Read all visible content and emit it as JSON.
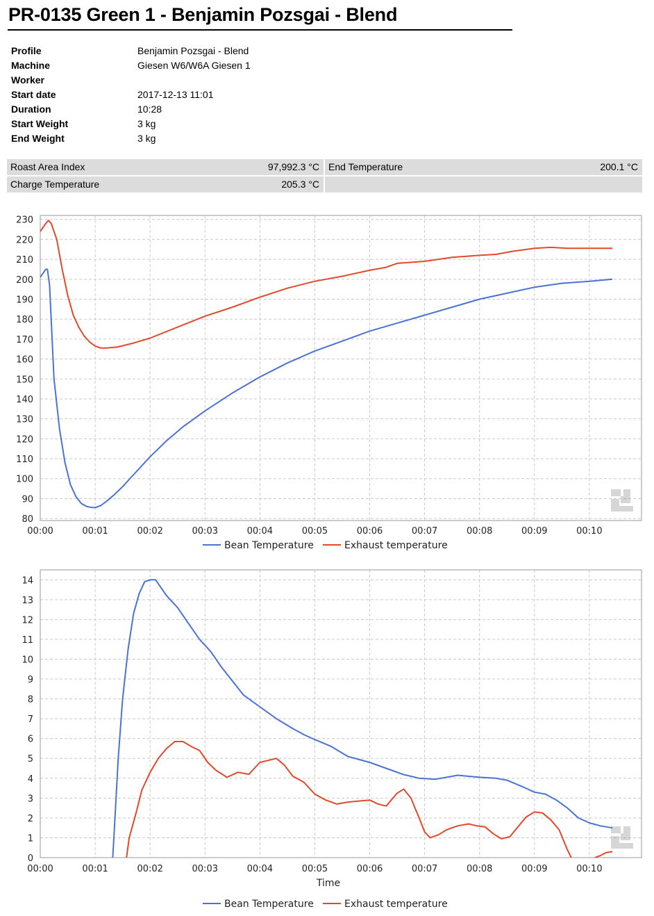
{
  "report": {
    "title": "PR-0135 Green 1 - Benjamin Pozsgai - Blend",
    "details": [
      {
        "label": "Profile",
        "value": "Benjamin Pozsgai - Blend"
      },
      {
        "label": "Machine",
        "value": "Giesen W6/W6A Giesen 1"
      },
      {
        "label": "Worker",
        "value": ""
      },
      {
        "label": "Start date",
        "value": "2017-12-13 11:01"
      },
      {
        "label": "Duration",
        "value": "10:28"
      },
      {
        "label": "Start Weight",
        "value": "3 kg"
      },
      {
        "label": "End Weight",
        "value": "3 kg"
      }
    ],
    "metrics": {
      "roast_area_index": {
        "label": "Roast Area Index",
        "value": "97,992.3 °C"
      },
      "end_temperature": {
        "label": "End Temperature",
        "value": "200.1 °C"
      },
      "charge_temperature": {
        "label": "Charge Temperature",
        "value": "205.3 °C"
      }
    }
  },
  "colors": {
    "bean": "#4a72d4",
    "exhaust": "#e2492a",
    "metric_bg": "#dcdcdc"
  },
  "chart_data": [
    {
      "type": "line",
      "name": "temperature-chart",
      "xlabel": "",
      "ylabel": "",
      "x_unit": "minutes",
      "xlim": [
        0,
        10.95
      ],
      "ylim": [
        79,
        232
      ],
      "yticks": [
        80,
        90,
        100,
        110,
        120,
        130,
        140,
        150,
        160,
        170,
        180,
        190,
        200,
        210,
        220,
        230
      ],
      "xticks": [
        0,
        1,
        2,
        3,
        4,
        5,
        6,
        7,
        8,
        9,
        10
      ],
      "xtick_labels": [
        "00:00",
        "00:01",
        "00:02",
        "00:03",
        "00:04",
        "00:05",
        "00:06",
        "00:07",
        "00:08",
        "00:09",
        "00:10"
      ],
      "grid": true,
      "legend": "bottom-center",
      "series": [
        {
          "name": "Bean Temperature",
          "color": "#4a72d4",
          "x": [
            0,
            0.05,
            0.1,
            0.13,
            0.17,
            0.25,
            0.35,
            0.45,
            0.55,
            0.65,
            0.75,
            0.85,
            0.95,
            1.0,
            1.1,
            1.2,
            1.35,
            1.5,
            1.7,
            2.0,
            2.3,
            2.6,
            3.0,
            3.5,
            4.0,
            4.5,
            5.0,
            5.5,
            6.0,
            6.5,
            7.0,
            7.5,
            8.0,
            8.5,
            9.0,
            9.5,
            10.0,
            10.42
          ],
          "y": [
            201,
            203,
            205,
            205,
            197,
            150,
            125,
            108,
            97,
            91,
            87.5,
            86,
            85.5,
            85.5,
            86.5,
            88.5,
            92,
            96,
            102,
            111,
            119,
            126,
            134,
            143,
            151,
            158,
            164,
            169,
            174,
            178,
            182,
            186,
            190,
            193,
            196,
            198,
            199,
            200
          ]
        },
        {
          "name": "Exhaust temperature",
          "color": "#e2492a",
          "x": [
            0,
            0.05,
            0.1,
            0.15,
            0.2,
            0.3,
            0.4,
            0.5,
            0.6,
            0.7,
            0.8,
            0.9,
            1.0,
            1.1,
            1.2,
            1.4,
            1.7,
            2.0,
            2.5,
            3.0,
            3.5,
            4.0,
            4.5,
            5.0,
            5.5,
            6.0,
            6.3,
            6.5,
            7.0,
            7.5,
            8.0,
            8.3,
            8.6,
            9.0,
            9.3,
            9.6,
            10.0,
            10.42
          ],
          "y": [
            224,
            226,
            228,
            229.5,
            228,
            220,
            205,
            192,
            182,
            176,
            171.5,
            168.5,
            166.5,
            165.5,
            165.5,
            166,
            168,
            170.5,
            176,
            181.5,
            186,
            191,
            195.5,
            199,
            201.5,
            204.5,
            206,
            208,
            209,
            211,
            212,
            212.5,
            214,
            215.5,
            216,
            215.5,
            215.5,
            215.5
          ]
        }
      ]
    },
    {
      "type": "line",
      "name": "rate-of-rise-chart",
      "xlabel": "Time",
      "ylabel": "",
      "x_unit": "minutes",
      "xlim": [
        0,
        10.95
      ],
      "ylim": [
        0,
        14.5
      ],
      "yticks": [
        0,
        1,
        2,
        3,
        4,
        5,
        6,
        7,
        8,
        9,
        10,
        11,
        12,
        13,
        14
      ],
      "xticks": [
        0,
        1,
        2,
        3,
        4,
        5,
        6,
        7,
        8,
        9,
        10
      ],
      "xtick_labels": [
        "00:00",
        "00:01",
        "00:02",
        "00:03",
        "00:04",
        "00:05",
        "00:06",
        "00:07",
        "00:08",
        "00:09",
        "00:10"
      ],
      "grid": true,
      "legend": "bottom-center",
      "series": [
        {
          "name": "Bean Temperature",
          "color": "#4a72d4",
          "x": [
            1.32,
            1.36,
            1.42,
            1.5,
            1.6,
            1.7,
            1.8,
            1.9,
            2.0,
            2.1,
            2.2,
            2.3,
            2.5,
            2.7,
            2.9,
            3.1,
            3.3,
            3.5,
            3.7,
            4.0,
            4.3,
            4.6,
            4.8,
            5.0,
            5.3,
            5.6,
            6.0,
            6.3,
            6.6,
            6.9,
            7.2,
            7.6,
            8.0,
            8.3,
            8.5,
            8.8,
            9.0,
            9.2,
            9.4,
            9.6,
            9.8,
            10.0,
            10.2,
            10.42
          ],
          "y": [
            0,
            2,
            5,
            8,
            10.5,
            12.3,
            13.3,
            13.9,
            14.0,
            14.0,
            13.6,
            13.2,
            12.6,
            11.8,
            11.0,
            10.4,
            9.6,
            8.9,
            8.2,
            7.6,
            7.0,
            6.5,
            6.2,
            5.95,
            5.6,
            5.1,
            4.8,
            4.5,
            4.2,
            4.0,
            3.95,
            4.15,
            4.05,
            4.0,
            3.9,
            3.55,
            3.3,
            3.2,
            2.9,
            2.5,
            2.0,
            1.75,
            1.6,
            1.5
          ]
        },
        {
          "name": "Exhaust temperature",
          "color": "#e2492a",
          "x": [
            1.57,
            1.62,
            1.75,
            1.85,
            2.0,
            2.15,
            2.3,
            2.45,
            2.6,
            2.75,
            2.9,
            3.05,
            3.2,
            3.4,
            3.6,
            3.8,
            4.0,
            4.15,
            4.3,
            4.45,
            4.6,
            4.8,
            5.0,
            5.2,
            5.4,
            5.6,
            5.8,
            6.0,
            6.15,
            6.3,
            6.5,
            6.62,
            6.75,
            6.9,
            7.0,
            7.1,
            7.25,
            7.4,
            7.6,
            7.8,
            7.95,
            8.1,
            8.25,
            8.4,
            8.55,
            8.7,
            8.85,
            9.0,
            9.15,
            9.3,
            9.45,
            9.6,
            9.67
          ],
          "y": [
            0,
            1,
            2.3,
            3.4,
            4.3,
            5.0,
            5.5,
            5.85,
            5.85,
            5.6,
            5.4,
            4.8,
            4.4,
            4.05,
            4.3,
            4.2,
            4.8,
            4.9,
            5.0,
            4.65,
            4.1,
            3.8,
            3.2,
            2.9,
            2.7,
            2.8,
            2.85,
            2.9,
            2.7,
            2.6,
            3.25,
            3.45,
            3.0,
            2.0,
            1.3,
            1.0,
            1.15,
            1.4,
            1.6,
            1.7,
            1.6,
            1.55,
            1.2,
            0.95,
            1.05,
            1.55,
            2.05,
            2.3,
            2.25,
            1.9,
            1.4,
            0.4,
            0
          ]
        },
        {
          "name": "Exhaust temperature",
          "color": "#e2492a",
          "x": [
            10.1,
            10.2,
            10.3,
            10.42
          ],
          "y": [
            0,
            0.1,
            0.25,
            0.3
          ]
        }
      ]
    }
  ]
}
